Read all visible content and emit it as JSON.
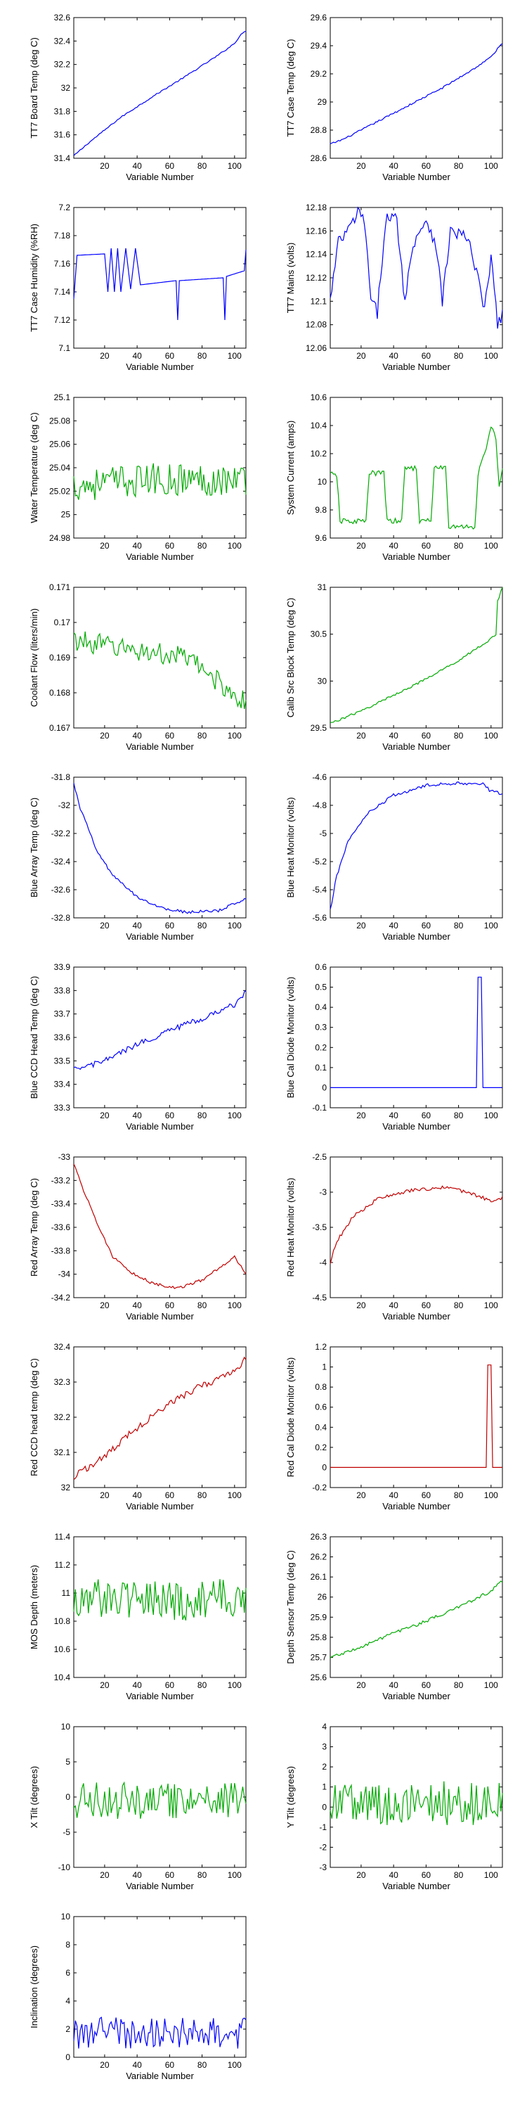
{
  "figure": {
    "xlabel": "Variable Number",
    "x_ticks": [
      20,
      40,
      60,
      80,
      100
    ],
    "x_range": [
      1,
      107
    ]
  },
  "colors": {
    "blue": "#0000ff",
    "green": "#00aa00",
    "red": "#c00000",
    "axis": "#000000"
  },
  "chart_data": [
    {
      "id": "tt7-board-temp",
      "type": "line",
      "ylabel": "TT7 Board Temp (deg C)",
      "ylim": [
        31.4,
        32.6
      ],
      "yticks": [
        "31.4",
        "31.6",
        "31.8",
        "32",
        "32.2",
        "32.4",
        "32.6"
      ],
      "yticks_values": [
        31.4,
        31.6,
        31.8,
        32,
        32.2,
        32.4,
        32.6
      ],
      "color": "blue",
      "noise": 0.006,
      "anchors": [
        [
          1,
          31.42
        ],
        [
          10,
          31.53
        ],
        [
          30,
          31.75
        ],
        [
          50,
          31.93
        ],
        [
          70,
          32.1
        ],
        [
          90,
          32.28
        ],
        [
          100,
          32.38
        ],
        [
          104,
          32.46
        ],
        [
          107,
          32.48
        ]
      ]
    },
    {
      "id": "tt7-case-temp",
      "type": "line",
      "ylabel": "TT7 Case Temp (deg C)",
      "ylim": [
        28.6,
        29.6
      ],
      "yticks": [
        "28.6",
        "28.8",
        "29",
        "29.2",
        "29.4",
        "29.6"
      ],
      "yticks_values": [
        28.6,
        28.8,
        29,
        29.2,
        29.4,
        29.6
      ],
      "color": "blue",
      "noise": 0.006,
      "anchors": [
        [
          1,
          28.7
        ],
        [
          10,
          28.74
        ],
        [
          30,
          28.86
        ],
        [
          50,
          28.98
        ],
        [
          70,
          29.1
        ],
        [
          90,
          29.24
        ],
        [
          100,
          29.32
        ],
        [
          107,
          29.42
        ]
      ]
    },
    {
      "id": "tt7-case-humidity",
      "type": "line",
      "ylabel": "TT7 Case Humidity (%RH)",
      "ylim": [
        7.1,
        7.2
      ],
      "yticks": [
        "7.1",
        "7.12",
        "7.14",
        "7.16",
        "7.18",
        "7.2"
      ],
      "yticks_values": [
        7.1,
        7.12,
        7.14,
        7.16,
        7.18,
        7.2
      ],
      "color": "blue",
      "noise": 0,
      "anchors": [
        [
          1,
          7.135
        ],
        [
          3,
          7.166
        ],
        [
          20,
          7.167
        ],
        [
          22,
          7.14
        ],
        [
          24,
          7.171
        ],
        [
          26,
          7.14
        ],
        [
          28,
          7.171
        ],
        [
          30,
          7.14
        ],
        [
          33,
          7.171
        ],
        [
          36,
          7.142
        ],
        [
          39,
          7.171
        ],
        [
          42,
          7.145
        ],
        [
          64,
          7.148
        ],
        [
          65,
          7.12
        ],
        [
          66,
          7.148
        ],
        [
          93,
          7.15
        ],
        [
          94,
          7.12
        ],
        [
          95,
          7.151
        ],
        [
          106,
          7.155
        ],
        [
          107,
          7.17
        ]
      ]
    },
    {
      "id": "tt7-mains",
      "type": "line",
      "ylabel": "TT7 Mains  (volts)",
      "ylim": [
        12.06,
        12.18
      ],
      "yticks": [
        "12.06",
        "12.08",
        "12.1",
        "12.12",
        "12.14",
        "12.16",
        "12.18"
      ],
      "yticks_values": [
        12.06,
        12.08,
        12.1,
        12.12,
        12.14,
        12.16,
        12.18
      ],
      "color": "blue",
      "noise": 0.006,
      "anchors": [
        [
          1,
          12.1
        ],
        [
          6,
          12.15
        ],
        [
          12,
          12.16
        ],
        [
          18,
          12.175
        ],
        [
          22,
          12.17
        ],
        [
          26,
          12.1
        ],
        [
          30,
          12.09
        ],
        [
          35,
          12.17
        ],
        [
          42,
          12.17
        ],
        [
          47,
          12.1
        ],
        [
          52,
          12.15
        ],
        [
          60,
          12.17
        ],
        [
          66,
          12.15
        ],
        [
          70,
          12.1
        ],
        [
          75,
          12.16
        ],
        [
          85,
          12.155
        ],
        [
          92,
          12.12
        ],
        [
          96,
          12.09
        ],
        [
          100,
          12.14
        ],
        [
          104,
          12.08
        ],
        [
          107,
          12.09
        ]
      ]
    },
    {
      "id": "water-temperature",
      "type": "line",
      "ylabel": "Water Temperature (deg C)",
      "ylim": [
        24.98,
        25.1
      ],
      "yticks": [
        "24.98",
        "25",
        "25.02",
        "25.04",
        "25.06",
        "25.08",
        "25.1"
      ],
      "yticks_values": [
        24.98,
        25,
        25.02,
        25.04,
        25.06,
        25.08,
        25.1
      ],
      "color": "green",
      "noise": 0.014,
      "anchors": [
        [
          1,
          25.025
        ],
        [
          50,
          25.03
        ],
        [
          107,
          25.03
        ]
      ]
    },
    {
      "id": "system-current",
      "type": "line",
      "ylabel": "System Current (amps)",
      "ylim": [
        9.6,
        10.6
      ],
      "yticks": [
        "9.6",
        "9.8",
        "10",
        "10.2",
        "10.4",
        "10.6"
      ],
      "yticks_values": [
        9.6,
        9.8,
        10,
        10.2,
        10.4,
        10.6
      ],
      "color": "green",
      "noise": 0.02,
      "anchors": [
        [
          1,
          10.05
        ],
        [
          5,
          10.05
        ],
        [
          7,
          9.72
        ],
        [
          23,
          9.72
        ],
        [
          25,
          10.06
        ],
        [
          34,
          10.06
        ],
        [
          36,
          9.72
        ],
        [
          45,
          9.72
        ],
        [
          47,
          10.1
        ],
        [
          54,
          10.1
        ],
        [
          56,
          9.72
        ],
        [
          63,
          9.72
        ],
        [
          65,
          10.1
        ],
        [
          72,
          10.1
        ],
        [
          74,
          9.68
        ],
        [
          90,
          9.68
        ],
        [
          92,
          10.05
        ],
        [
          96,
          10.2
        ],
        [
          100,
          10.4
        ],
        [
          103,
          10.3
        ],
        [
          105,
          9.95
        ],
        [
          107,
          10.1
        ]
      ]
    },
    {
      "id": "coolant-flow",
      "type": "line",
      "ylabel": "Coolant Flow (liters/min)",
      "ylim": [
        0.167,
        0.171
      ],
      "yticks": [
        "0.167",
        "0.168",
        "0.169",
        "0.17",
        "0.171"
      ],
      "yticks_values": [
        0.167,
        0.168,
        0.169,
        0.17,
        0.171
      ],
      "color": "green",
      "noise": 0.0003,
      "anchors": [
        [
          1,
          0.1695
        ],
        [
          40,
          0.1692
        ],
        [
          70,
          0.169
        ],
        [
          85,
          0.1685
        ],
        [
          107,
          0.1677
        ]
      ]
    },
    {
      "id": "calib-src-block-temp",
      "type": "line",
      "ylabel": "Calib Src Block Temp (deg C)",
      "ylim": [
        29.5,
        31
      ],
      "yticks": [
        "29.5",
        "30",
        "30.5",
        "31"
      ],
      "yticks_values": [
        29.5,
        30,
        30.5,
        31
      ],
      "color": "green",
      "noise": 0.012,
      "anchors": [
        [
          1,
          29.55
        ],
        [
          20,
          29.68
        ],
        [
          40,
          29.85
        ],
        [
          60,
          30.02
        ],
        [
          80,
          30.22
        ],
        [
          100,
          30.45
        ],
        [
          103,
          30.5
        ],
        [
          104,
          30.85
        ],
        [
          107,
          31
        ]
      ]
    },
    {
      "id": "blue-array-temp",
      "type": "line",
      "ylabel": "Blue Array Temp (deg C)",
      "ylim": [
        -32.8,
        -31.8
      ],
      "yticks": [
        "-32.8",
        "-32.6",
        "-32.4",
        "-32.2",
        "-32",
        "-31.8"
      ],
      "yticks_values": [
        -32.8,
        -32.6,
        -32.4,
        -32.2,
        -32,
        -31.8
      ],
      "color": "blue",
      "noise": 0.01,
      "anchors": [
        [
          1,
          -31.85
        ],
        [
          5,
          -32.02
        ],
        [
          15,
          -32.32
        ],
        [
          25,
          -32.5
        ],
        [
          40,
          -32.65
        ],
        [
          55,
          -32.73
        ],
        [
          70,
          -32.76
        ],
        [
          90,
          -32.75
        ],
        [
          100,
          -32.7
        ],
        [
          107,
          -32.66
        ]
      ]
    },
    {
      "id": "blue-heat-monitor",
      "type": "line",
      "ylabel": "Blue Heat Monitor (volts)",
      "ylim": [
        -5.6,
        -4.6
      ],
      "yticks": [
        "-5.6",
        "-5.4",
        "-5.2",
        "-5",
        "-4.8",
        "-4.6"
      ],
      "yticks_values": [
        -5.6,
        -5.4,
        -5.2,
        -5,
        -4.8,
        -4.6
      ],
      "color": "blue",
      "noise": 0.012,
      "anchors": [
        [
          1,
          -5.55
        ],
        [
          5,
          -5.3
        ],
        [
          12,
          -5.05
        ],
        [
          25,
          -4.85
        ],
        [
          40,
          -4.73
        ],
        [
          60,
          -4.66
        ],
        [
          80,
          -4.64
        ],
        [
          95,
          -4.65
        ],
        [
          100,
          -4.7
        ],
        [
          107,
          -4.72
        ]
      ]
    },
    {
      "id": "blue-ccd-head-temp",
      "type": "line",
      "ylabel": "Blue CCD Head Temp (deg C)",
      "ylim": [
        33.3,
        33.9
      ],
      "yticks": [
        "33.3",
        "33.4",
        "33.5",
        "33.6",
        "33.7",
        "33.8",
        "33.9"
      ],
      "yticks_values": [
        33.3,
        33.4,
        33.5,
        33.6,
        33.7,
        33.8,
        33.9
      ],
      "color": "blue",
      "noise": 0.012,
      "anchors": [
        [
          1,
          33.46
        ],
        [
          20,
          33.5
        ],
        [
          40,
          33.57
        ],
        [
          60,
          33.63
        ],
        [
          80,
          33.68
        ],
        [
          100,
          33.74
        ],
        [
          107,
          33.79
        ]
      ]
    },
    {
      "id": "blue-cal-diode-monitor",
      "type": "line",
      "ylabel": "Blue Cal Diode Monitor (volts)",
      "ylim": [
        -0.1,
        0.6
      ],
      "yticks": [
        "-0.1",
        "0",
        "0.1",
        "0.2",
        "0.3",
        "0.4",
        "0.5",
        "0.6"
      ],
      "yticks_values": [
        -0.1,
        0,
        0.1,
        0.2,
        0.3,
        0.4,
        0.5,
        0.6
      ],
      "color": "blue",
      "noise": 0,
      "anchors": [
        [
          1,
          0
        ],
        [
          91,
          0
        ],
        [
          92,
          0.55
        ],
        [
          94,
          0.55
        ],
        [
          95,
          0
        ],
        [
          107,
          0
        ]
      ]
    },
    {
      "id": "red-array-temp",
      "type": "line",
      "ylabel": "Red Array Temp (deg C)",
      "ylim": [
        -34.2,
        -33
      ],
      "yticks": [
        "-34.2",
        "-34",
        "-33.8",
        "-33.6",
        "-33.4",
        "-33.2",
        "-33"
      ],
      "yticks_values": [
        -34.2,
        -34,
        -33.8,
        -33.6,
        -33.4,
        -33.2,
        -33
      ],
      "color": "red",
      "noise": 0.012,
      "anchors": [
        [
          1,
          -33.05
        ],
        [
          6,
          -33.25
        ],
        [
          15,
          -33.55
        ],
        [
          25,
          -33.85
        ],
        [
          35,
          -33.98
        ],
        [
          50,
          -34.08
        ],
        [
          65,
          -34.12
        ],
        [
          80,
          -34.05
        ],
        [
          95,
          -33.9
        ],
        [
          100,
          -33.85
        ],
        [
          107,
          -34.0
        ]
      ]
    },
    {
      "id": "red-heat-monitor",
      "type": "line",
      "ylabel": "Red Heat Monitor (volts)",
      "ylim": [
        -4.5,
        -2.5
      ],
      "yticks": [
        "-4.5",
        "-4",
        "-3.5",
        "-3",
        "-2.5"
      ],
      "yticks_values": [
        -4.5,
        -4,
        -3.5,
        -3,
        -2.5
      ],
      "color": "red",
      "noise": 0.025,
      "anchors": [
        [
          1,
          -4.0
        ],
        [
          5,
          -3.7
        ],
        [
          15,
          -3.35
        ],
        [
          30,
          -3.1
        ],
        [
          50,
          -2.98
        ],
        [
          70,
          -2.93
        ],
        [
          85,
          -3.0
        ],
        [
          100,
          -3.12
        ],
        [
          107,
          -3.08
        ]
      ]
    },
    {
      "id": "red-ccd-head-temp",
      "type": "line",
      "ylabel": "Red CCD head temp (deg C)",
      "ylim": [
        32,
        32.4
      ],
      "yticks": [
        "32",
        "32.1",
        "32.2",
        "32.3",
        "32.4"
      ],
      "yticks_values": [
        32,
        32.1,
        32.2,
        32.3,
        32.4
      ],
      "color": "red",
      "noise": 0.01,
      "anchors": [
        [
          1,
          32.03
        ],
        [
          20,
          32.09
        ],
        [
          40,
          32.17
        ],
        [
          60,
          32.24
        ],
        [
          80,
          32.29
        ],
        [
          100,
          32.33
        ],
        [
          107,
          32.37
        ]
      ]
    },
    {
      "id": "red-cal-diode-monitor",
      "type": "line",
      "ylabel": "Red Cal Diode Monitor (volts)",
      "ylim": [
        -0.2,
        1.2
      ],
      "yticks": [
        "-0.2",
        "0",
        "0.2",
        "0.4",
        "0.6",
        "0.8",
        "1",
        "1.2"
      ],
      "yticks_values": [
        -0.2,
        0,
        0.2,
        0.4,
        0.6,
        0.8,
        1,
        1.2
      ],
      "color": "red",
      "noise": 0,
      "anchors": [
        [
          1,
          0
        ],
        [
          97,
          0
        ],
        [
          98,
          1.02
        ],
        [
          100,
          1.02
        ],
        [
          101,
          0
        ],
        [
          107,
          0
        ]
      ]
    },
    {
      "id": "mos-depth",
      "type": "line",
      "ylabel": "MOS Depth  (meters)",
      "ylim": [
        10.4,
        11.4
      ],
      "yticks": [
        "10.4",
        "10.6",
        "10.8",
        "11",
        "11.2",
        "11.4"
      ],
      "yticks_values": [
        10.4,
        10.6,
        10.8,
        11,
        11.2,
        11.4
      ],
      "color": "green",
      "noise": 0.15,
      "anchors": [
        [
          1,
          10.95
        ],
        [
          107,
          10.95
        ]
      ]
    },
    {
      "id": "depth-sensor-temp",
      "type": "line",
      "ylabel": "Depth Sensor Temp (deg C)",
      "ylim": [
        25.6,
        26.3
      ],
      "yticks": [
        "25.6",
        "25.7",
        "25.8",
        "25.9",
        "26",
        "26.1",
        "26.2",
        "26.3"
      ],
      "yticks_values": [
        25.6,
        25.7,
        25.8,
        25.9,
        26,
        26.1,
        26.2,
        26.3
      ],
      "color": "green",
      "noise": 0.008,
      "anchors": [
        [
          1,
          25.7
        ],
        [
          20,
          25.75
        ],
        [
          40,
          25.82
        ],
        [
          60,
          25.88
        ],
        [
          80,
          25.95
        ],
        [
          100,
          26.03
        ],
        [
          107,
          26.08
        ]
      ]
    },
    {
      "id": "x-tilt",
      "type": "line",
      "ylabel": "X Tilt  (degrees)",
      "ylim": [
        -10,
        10
      ],
      "yticks": [
        "-10",
        "-5",
        "0",
        "5",
        "10"
      ],
      "yticks_values": [
        -10,
        -5,
        0,
        5,
        10
      ],
      "color": "green",
      "noise": 2.6,
      "anchors": [
        [
          1,
          -0.5
        ],
        [
          107,
          -0.5
        ]
      ]
    },
    {
      "id": "y-tilt",
      "type": "line",
      "ylabel": "Y Tilt  (degrees)",
      "ylim": [
        -3,
        4
      ],
      "yticks": [
        "-3",
        "-2",
        "-1",
        "0",
        "1",
        "2",
        "3",
        "4"
      ],
      "yticks_values": [
        -3,
        -2,
        -1,
        0,
        1,
        2,
        3,
        4
      ],
      "color": "green",
      "noise": 1.1,
      "anchors": [
        [
          1,
          0.2
        ],
        [
          107,
          0.2
        ]
      ]
    },
    {
      "id": "inclination",
      "type": "line",
      "ylabel": "Inclination  (degrees)",
      "ylim": [
        0,
        10
      ],
      "yticks": [
        "0",
        "2",
        "4",
        "6",
        "8",
        "10"
      ],
      "yticks_values": [
        0,
        2,
        4,
        6,
        8,
        10
      ],
      "color": "blue",
      "noise": 1.4,
      "positive": true,
      "anchors": [
        [
          1,
          2.5
        ],
        [
          107,
          2.5
        ]
      ]
    }
  ]
}
